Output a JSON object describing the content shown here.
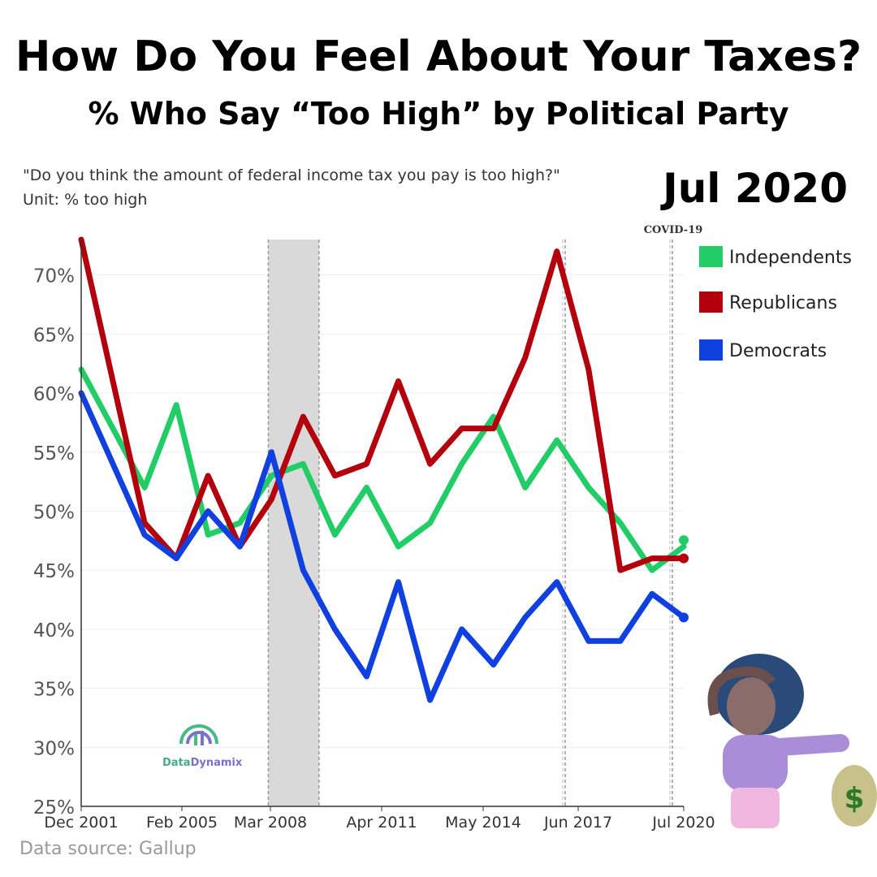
{
  "header": {
    "title": "How Do You Feel About Your Taxes?",
    "subtitle": "% Who Say “Too High” by Political Party",
    "question": "\"Do you think the amount of federal income tax you pay is too high?\"",
    "unit": "Unit: % too high",
    "current_date": "Jul 2020"
  },
  "footer": {
    "source": "Data source: Gallup"
  },
  "logo": {
    "part1": "Data",
    "part2": "Dynamix"
  },
  "colors": {
    "independents": "#22cc66",
    "republicans": "#b3000c",
    "democrats": "#1040e0",
    "shade": "#d9d9d9"
  },
  "chart_data": {
    "type": "line",
    "xlabel": "",
    "ylabel": "",
    "ylim": [
      25,
      73
    ],
    "y_ticks": [
      "25%",
      "30%",
      "35%",
      "40%",
      "45%",
      "50%",
      "55%",
      "60%",
      "65%",
      "70%"
    ],
    "x_tick_labels": [
      "Dec 2001",
      "Feb 2005",
      "Mar 2008",
      "Apr 2011",
      "May 2014",
      "Jun 2017",
      "Jul 2020"
    ],
    "annotations": [
      {
        "label": "COVID-19",
        "x_index": 18.4
      }
    ],
    "shaded_region": {
      "start_index": 5.9,
      "end_index": 7.5
    },
    "series": [
      {
        "name": "Independents",
        "values": [
          62,
          57,
          52,
          59,
          48,
          49,
          53,
          54,
          48,
          52,
          47,
          49,
          54,
          58,
          52,
          56,
          52,
          49,
          45,
          47
        ]
      },
      {
        "name": "Republicans",
        "values": [
          73,
          61,
          49,
          46,
          53,
          47,
          51,
          58,
          53,
          54,
          61,
          54,
          57,
          57,
          63,
          72,
          62,
          45,
          46,
          46
        ]
      },
      {
        "name": "Democrats",
        "values": [
          60,
          54,
          48,
          46,
          50,
          47,
          55,
          45,
          40,
          36,
          44,
          34,
          40,
          37,
          41,
          44,
          39,
          39,
          43,
          41
        ]
      }
    ],
    "legend_position": "top-right"
  }
}
